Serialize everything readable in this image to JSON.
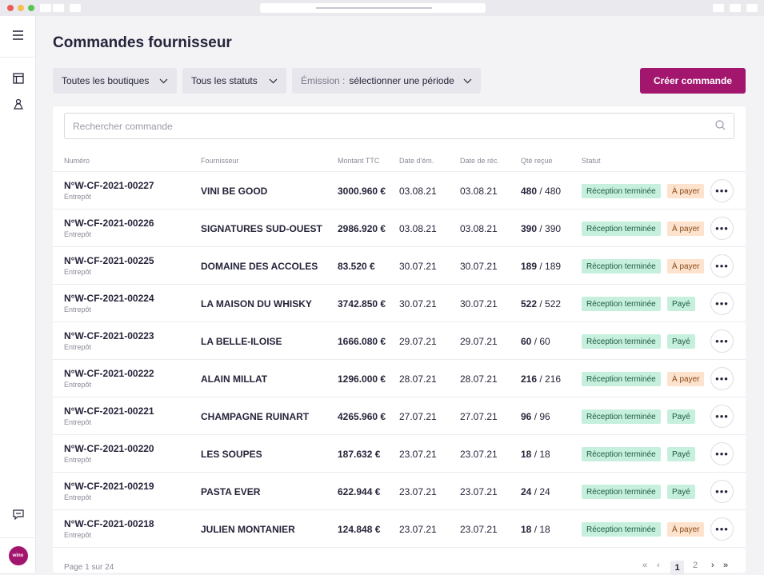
{
  "page": {
    "title": "Commandes fournisseur"
  },
  "filters": {
    "shops": "Toutes les boutiques",
    "statuses": "Tous les statuts",
    "emission_label": "Émission :",
    "emission_value": "sélectionner une période"
  },
  "actions": {
    "create": "Créer commande"
  },
  "search": {
    "placeholder": "Rechercher commande"
  },
  "table": {
    "headers": {
      "number": "Numéro",
      "supplier": "Fournisseur",
      "amount": "Montant TTC",
      "issue_date": "Date d'ém.",
      "receipt_date": "Date de réc.",
      "qty": "Qté reçue",
      "status": "Statut"
    },
    "rows": [
      {
        "number": "N°W-CF-2021-00227",
        "sub": "Entrepôt",
        "supplier": "VINI BE GOOD",
        "amount": "3000.960 €",
        "issue": "03.08.21",
        "receipt": "03.08.21",
        "qty": "480",
        "qty_total": "/ 480",
        "status": "Réception terminée",
        "payment": "À payer"
      },
      {
        "number": "N°W-CF-2021-00226",
        "sub": "Entrepôt",
        "supplier": "SIGNATURES SUD-OUEST",
        "amount": "2986.920 €",
        "issue": "03.08.21",
        "receipt": "03.08.21",
        "qty": "390",
        "qty_total": "/ 390",
        "status": "Réception terminée",
        "payment": "À payer"
      },
      {
        "number": "N°W-CF-2021-00225",
        "sub": "Entrepôt",
        "supplier": "DOMAINE DES ACCOLES",
        "amount": "83.520 €",
        "issue": "30.07.21",
        "receipt": "30.07.21",
        "qty": "189",
        "qty_total": "/ 189",
        "status": "Réception terminée",
        "payment": "À payer"
      },
      {
        "number": "N°W-CF-2021-00224",
        "sub": "Entrepôt",
        "supplier": "LA MAISON DU WHISKY",
        "amount": "3742.850 €",
        "issue": "30.07.21",
        "receipt": "30.07.21",
        "qty": "522",
        "qty_total": "/ 522",
        "status": "Réception terminée",
        "payment": "Payé"
      },
      {
        "number": "N°W-CF-2021-00223",
        "sub": "Entrepôt",
        "supplier": "LA BELLE-ILOISE",
        "amount": "1666.080 €",
        "issue": "29.07.21",
        "receipt": "29.07.21",
        "qty": "60",
        "qty_total": "/ 60",
        "status": "Réception terminée",
        "payment": "Payé"
      },
      {
        "number": "N°W-CF-2021-00222",
        "sub": "Entrepôt",
        "supplier": "ALAIN MILLAT",
        "amount": "1296.000 €",
        "issue": "28.07.21",
        "receipt": "28.07.21",
        "qty": "216",
        "qty_total": "/ 216",
        "status": "Réception terminée",
        "payment": "À payer"
      },
      {
        "number": "N°W-CF-2021-00221",
        "sub": "Entrepôt",
        "supplier": "CHAMPAGNE RUINART",
        "amount": "4265.960 €",
        "issue": "27.07.21",
        "receipt": "27.07.21",
        "qty": "96",
        "qty_total": "/ 96",
        "status": "Réception terminée",
        "payment": "Payé"
      },
      {
        "number": "N°W-CF-2021-00220",
        "sub": "Entrepôt",
        "supplier": "LES SOUPES",
        "amount": "187.632 €",
        "issue": "23.07.21",
        "receipt": "23.07.21",
        "qty": "18",
        "qty_total": "/ 18",
        "status": "Réception terminée",
        "payment": "Payé"
      },
      {
        "number": "N°W-CF-2021-00219",
        "sub": "Entrepôt",
        "supplier": "PASTA EVER",
        "amount": "622.944 €",
        "issue": "23.07.21",
        "receipt": "23.07.21",
        "qty": "24",
        "qty_total": "/ 24",
        "status": "Réception terminée",
        "payment": "Payé"
      },
      {
        "number": "N°W-CF-2021-00218",
        "sub": "Entrepôt",
        "supplier": "JULIEN MONTANIER",
        "amount": "124.848 €",
        "issue": "23.07.21",
        "receipt": "23.07.21",
        "qty": "18",
        "qty_total": "/ 18",
        "status": "Réception terminée",
        "payment": "À payer"
      }
    ]
  },
  "pagination": {
    "info": "Page 1 sur 24",
    "current": "1",
    "next": "2"
  },
  "sidebar": {
    "logo": "wino"
  },
  "colors": {
    "brand": "#a2166e",
    "success_bg": "#c6f0dd",
    "warning_bg": "#fde3cd"
  }
}
